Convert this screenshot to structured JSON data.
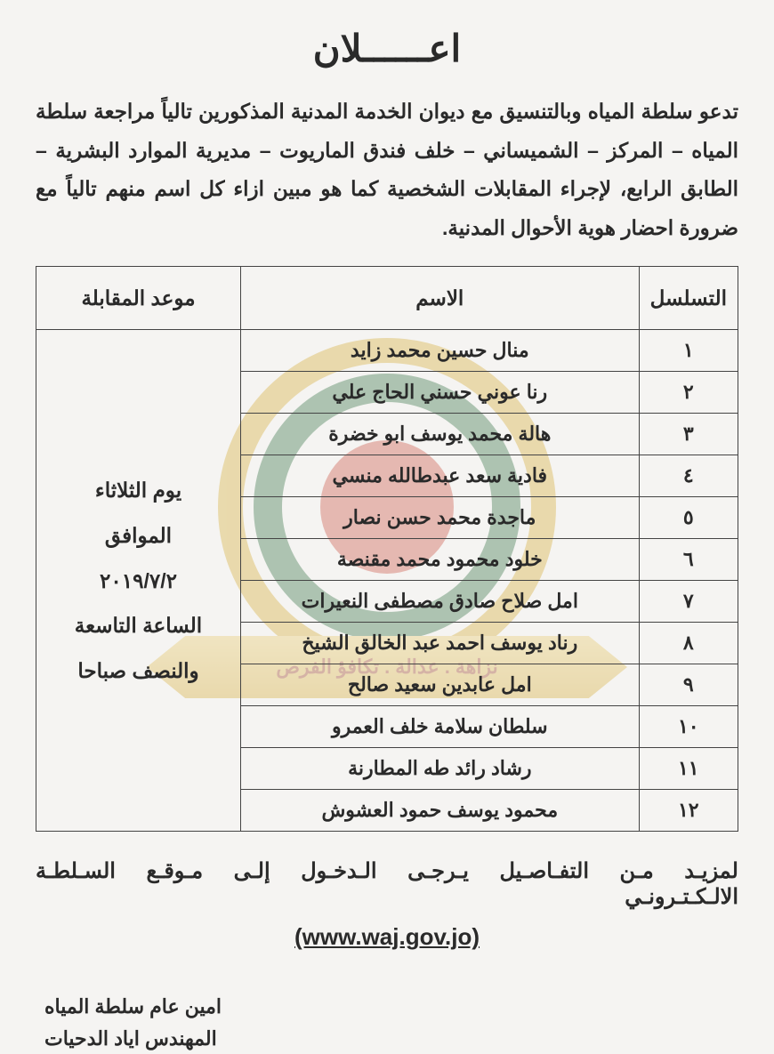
{
  "title": "اعــــــلان",
  "intro": "تدعو سلطة المياه وبالتنسيق مع ديوان الخدمة المدنية المذكورين تالياً مراجعة سلطة المياه – المركز – الشميساني – خلف فندق الماريوت – مديرية الموارد البشرية – الطابق الرابع، لإجراء المقابلات الشخصية كما هو مبين ازاء كل اسم منهم تالياً مع ضرورة احضار هوية الأحوال المدنية.",
  "table": {
    "headers": {
      "seq": "التسلسل",
      "name": "الاسم",
      "date": "موعد المقابلة"
    },
    "date_cell": "يوم الثلاثاء<br>الموافق<br>٢٠١٩/٧/٢<br>الساعة التاسعة<br>والنصف صباحا",
    "rows": [
      {
        "seq": "١",
        "name": "منال حسين محمد زايد"
      },
      {
        "seq": "٢",
        "name": "رنا عوني حسني الحاج علي"
      },
      {
        "seq": "٣",
        "name": "هالة محمد يوسف ابو خضرة"
      },
      {
        "seq": "٤",
        "name": "فادية سعد عبدطالله منسي"
      },
      {
        "seq": "٥",
        "name": "ماجدة محمد حسن نصار"
      },
      {
        "seq": "٦",
        "name": "خلود محمود محمد مقنصة"
      },
      {
        "seq": "٧",
        "name": "امل صلاح صادق مصطفى النعيرات"
      },
      {
        "seq": "٨",
        "name": "رناد يوسف احمد عبد الخالق الشيخ"
      },
      {
        "seq": "٩",
        "name": "امل عابدين سعيد صالح"
      },
      {
        "seq": "١٠",
        "name": "سلطان سلامة خلف العمرو"
      },
      {
        "seq": "١١",
        "name": "رشاد رائد طه المطارنة"
      },
      {
        "seq": "١٢",
        "name": "محمود يوسف حمود العشوش"
      }
    ]
  },
  "footer_text": "لمزيـد مـن التفـاصـيل يـرجـى الـدخـول إلـى مـوقـع السـلطـة الالـكـتـرونـي",
  "website": "(www.waj.gov.jo)",
  "signature_line1": "امين عام سلطة المياه",
  "signature_line2": "المهندس اياد الدحيات",
  "watermark_text": "نزاهة . عدالة . تكافؤ الفرص",
  "styling": {
    "page_bg": "#f5f4f2",
    "text_color": "#2a2a2a",
    "border_color": "#444444",
    "watermark_gold": "#d4a82d",
    "watermark_green": "#2a6b3a",
    "watermark_red": "#c94b3a",
    "title_fontsize": 42,
    "body_fontsize": 23,
    "table_fontsize": 22
  }
}
